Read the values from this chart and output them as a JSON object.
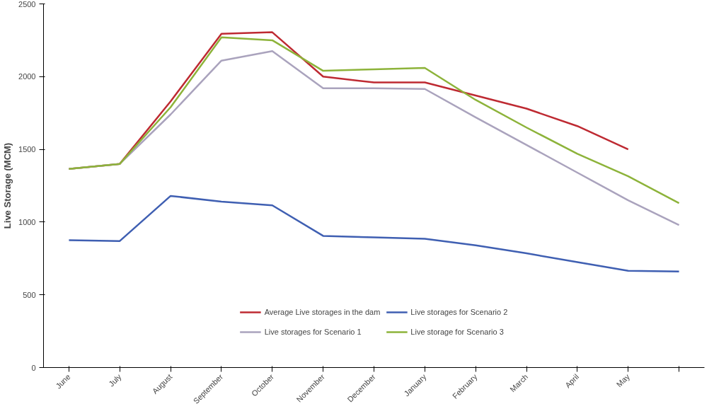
{
  "chart_data": {
    "type": "line",
    "ylabel": "Live Storage (MCM)",
    "categories": [
      "June",
      "July",
      "August",
      "September",
      "October",
      "November",
      "December",
      "January",
      "February",
      "March",
      "April",
      "May",
      null
    ],
    "ylim": [
      0,
      2500
    ],
    "yticks": [
      0,
      500,
      1000,
      1500,
      2000,
      2500
    ],
    "grid": false,
    "legend": "bottom",
    "marker": "none",
    "line_style": "solid",
    "series": [
      {
        "name": "Average Live storages in the dam",
        "color": "#be2a32",
        "values": [
          1365,
          1400,
          1830,
          2295,
          2305,
          2000,
          1960,
          1960,
          1870,
          1780,
          1660,
          1500,
          null
        ]
      },
      {
        "name": "Live storages for Scenario 1",
        "color": "#aaa3bd",
        "values": [
          1365,
          1400,
          1740,
          2110,
          2175,
          1920,
          1920,
          1915,
          1720,
          1530,
          1340,
          1150,
          980
        ]
      },
      {
        "name": "Live storages for Scenario 2",
        "color": "#3f5fb2",
        "values": [
          875,
          870,
          1180,
          1140,
          1115,
          905,
          895,
          885,
          840,
          785,
          725,
          665,
          660
        ]
      },
      {
        "name": "Live storage for Scenario 3",
        "color": "#8db33a",
        "values": [
          1365,
          1400,
          1790,
          2270,
          2250,
          2040,
          2050,
          2060,
          1840,
          1650,
          1470,
          1315,
          1130
        ]
      }
    ]
  }
}
